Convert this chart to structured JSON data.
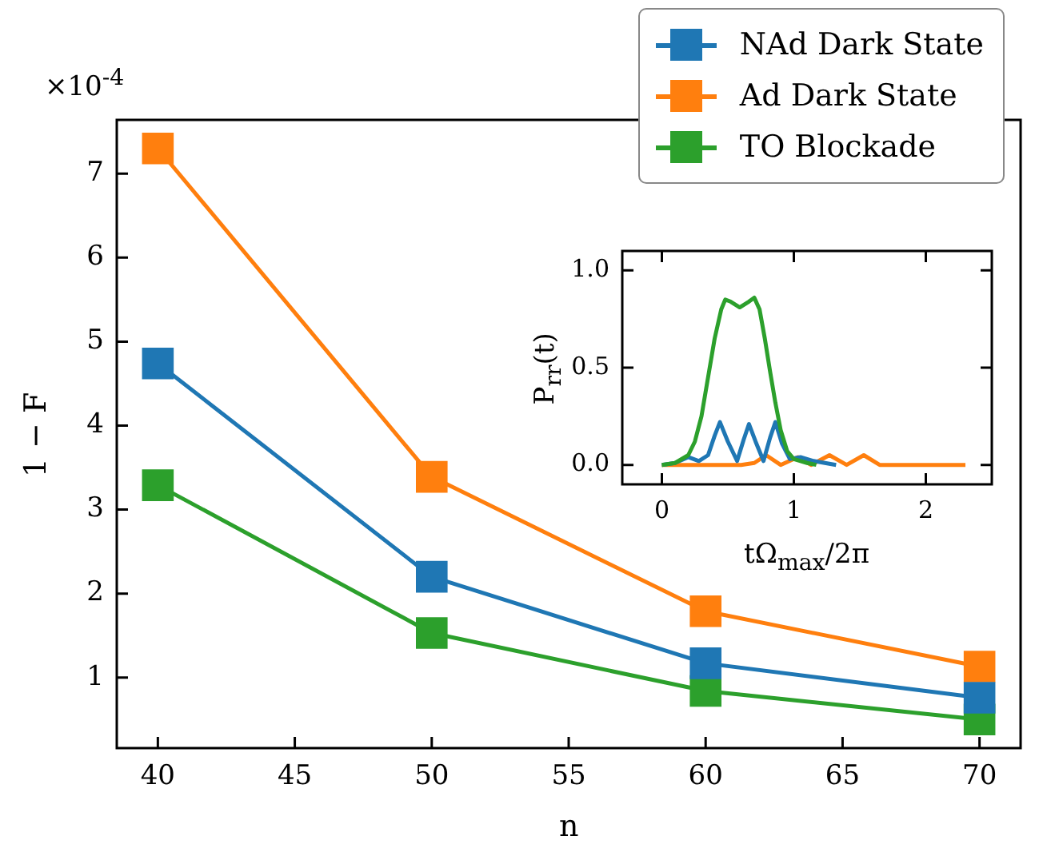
{
  "chart_data": [
    {
      "type": "line",
      "xlabel": "n",
      "ylabel": "1 − F",
      "x": [
        40,
        50,
        60,
        70
      ],
      "xlim": [
        38.5,
        71.5
      ],
      "ylim": [
        0.16,
        7.64
      ],
      "xticks": [
        40,
        45,
        50,
        55,
        60,
        65,
        70
      ],
      "yticks": [
        1,
        2,
        3,
        4,
        5,
        6,
        7
      ],
      "legend": "top right",
      "marker": "square",
      "grid": false,
      "annotations": [
        "×10$^{-4}$"
      ],
      "series": [
        {
          "name": "NAd Dark State",
          "color": "#1f77b4",
          "values": [
            4.74,
            2.2,
            1.17,
            0.76
          ]
        },
        {
          "name": "Ad Dark State",
          "color": "#ff7f0e",
          "values": [
            7.3,
            3.39,
            1.79,
            1.13
          ]
        },
        {
          "name": "TO Blockade",
          "color": "#2ca02c",
          "values": [
            3.29,
            1.53,
            0.84,
            0.5
          ]
        }
      ]
    },
    {
      "type": "line",
      "xlabel": "tΩ$_{max}$/2π",
      "ylabel": "P$_{rr}$(t)",
      "xlim": [
        -0.3,
        2.5
      ],
      "ylim": [
        -0.1,
        1.1
      ],
      "xticks": [
        0,
        1,
        2
      ],
      "yticks": [
        {
          "value": 0,
          "label": "0.0"
        },
        {
          "value": 0.5,
          "label": "0.5"
        },
        {
          "value": 1,
          "label": "1.0"
        }
      ],
      "marker": "none",
      "grid": false,
      "series": [
        {
          "color": "#2ca02c",
          "x": [
            0,
            0.1,
            0.2,
            0.25,
            0.3,
            0.35,
            0.4,
            0.45,
            0.48,
            0.52,
            0.59,
            0.66,
            0.7,
            0.74,
            0.78,
            0.82,
            0.86,
            0.9,
            0.95,
            1.0,
            1.1,
            1.17
          ],
          "values": [
            0,
            0.01,
            0.05,
            0.12,
            0.25,
            0.45,
            0.65,
            0.8,
            0.85,
            0.84,
            0.81,
            0.84,
            0.86,
            0.8,
            0.65,
            0.48,
            0.32,
            0.18,
            0.07,
            0.03,
            0.01,
            0
          ]
        },
        {
          "color": "#1f77b4",
          "x": [
            0,
            0.1,
            0.2,
            0.28,
            0.35,
            0.4,
            0.44,
            0.5,
            0.57,
            0.62,
            0.66,
            0.71,
            0.77,
            0.82,
            0.86,
            0.91,
            0.97,
            1.05,
            1.15,
            1.32
          ],
          "values": [
            0,
            0.01,
            0.04,
            0.02,
            0.05,
            0.15,
            0.22,
            0.12,
            0.02,
            0.13,
            0.21,
            0.12,
            0.02,
            0.14,
            0.22,
            0.11,
            0.03,
            0.04,
            0.02,
            0
          ]
        },
        {
          "color": "#ff7f0e",
          "x": [
            0,
            0.6,
            0.7,
            0.79,
            0.9,
            1.03,
            1.13,
            1.27,
            1.4,
            1.53,
            1.65,
            2.3
          ],
          "values": [
            0,
            0,
            0.01,
            0.05,
            0,
            0.04,
            0,
            0.05,
            0,
            0.05,
            0,
            0
          ]
        }
      ]
    }
  ]
}
